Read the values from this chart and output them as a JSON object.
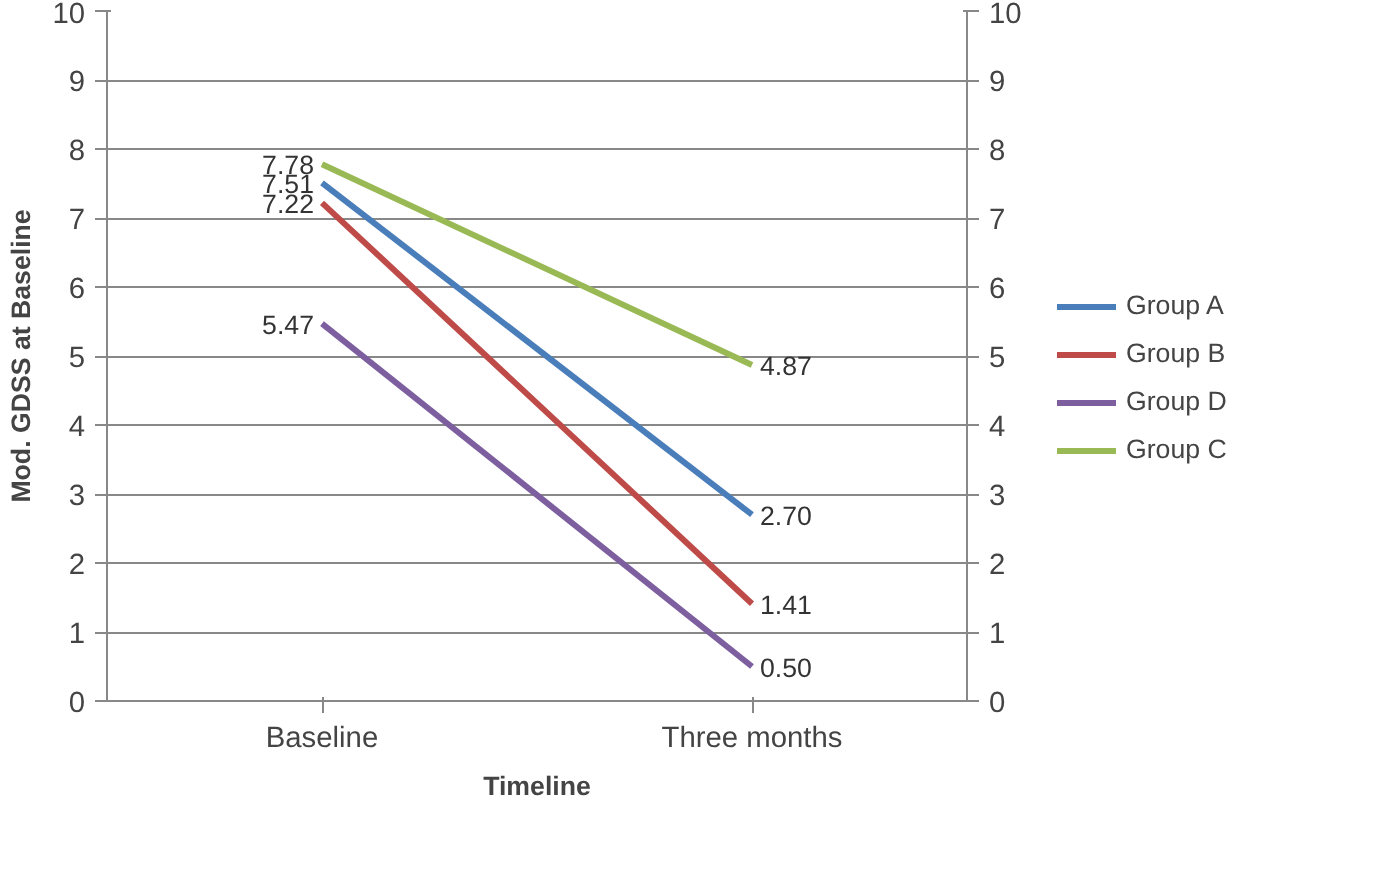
{
  "chart_data": {
    "type": "line",
    "xlabel": "Timeline",
    "ylabel": "Mod. GDSS at Baseline",
    "categories": [
      "Baseline",
      "Three months"
    ],
    "series": [
      {
        "name": "Group A",
        "color": "#4a7ebb",
        "values": [
          7.51,
          2.7
        ],
        "value_labels": [
          "7.51",
          "2.70"
        ]
      },
      {
        "name": "Group B",
        "color": "#be4b48",
        "values": [
          7.22,
          1.41
        ],
        "value_labels": [
          "7.22",
          "1.41"
        ]
      },
      {
        "name": "Group D",
        "color": "#7d5fa0",
        "values": [
          5.47,
          0.5
        ],
        "value_labels": [
          "5.47",
          "0.50"
        ]
      },
      {
        "name": "Group C",
        "color": "#98b954",
        "values": [
          7.78,
          4.87
        ],
        "value_labels": [
          "7.78",
          "4.87"
        ]
      }
    ],
    "ylim": [
      0,
      10
    ],
    "yticks": [
      0,
      1,
      2,
      3,
      4,
      5,
      6,
      7,
      8,
      9,
      10
    ],
    "y2lim": [
      0,
      10
    ],
    "y2ticks": [
      0,
      1,
      2,
      3,
      4,
      5,
      6,
      7,
      8,
      9,
      10
    ],
    "grid": "y",
    "legend": "right",
    "marker": "none",
    "line_style": "solid"
  }
}
